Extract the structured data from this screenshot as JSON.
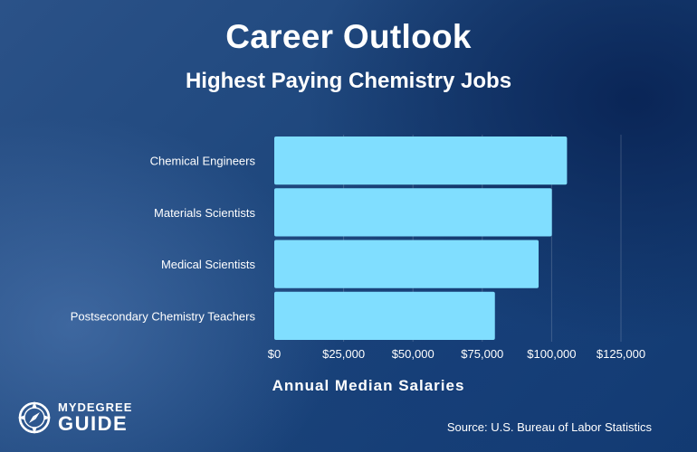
{
  "chart_data": {
    "type": "bar",
    "orientation": "horizontal",
    "title": "Career Outlook",
    "subtitle": "Highest Paying Chemistry Jobs",
    "categories": [
      "Chemical Engineers",
      "Materials Scientists",
      "Medical Scientists",
      "Postsecondary Chemistry Teachers"
    ],
    "values": [
      105550,
      100090,
      95310,
      79550
    ],
    "xlabel": "Annual Median Salaries",
    "ylabel": "",
    "xlim": [
      0,
      125000
    ],
    "xticks": [
      "$0",
      "$25,000",
      "$50,000",
      "$75,000",
      "$100,000",
      "$125,000"
    ],
    "bar_color": "#80deff",
    "grid": true
  },
  "source": "Source: U.S. Bureau of Labor Statistics",
  "logo": {
    "top": "MYDEGREE",
    "bottom": "GUIDE",
    "icon": "compass-icon"
  }
}
